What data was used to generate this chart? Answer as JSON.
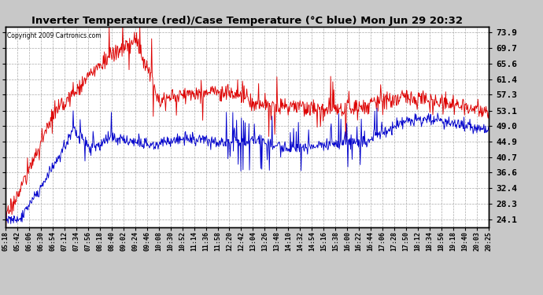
{
  "title": "Inverter Temperature (red)/Case Temperature (°C blue) Mon Jun 29 20:32",
  "copyright": "Copyright 2009 Cartronics.com",
  "yticks": [
    24.1,
    28.3,
    32.4,
    36.6,
    40.7,
    44.9,
    49.0,
    53.1,
    57.3,
    61.4,
    65.6,
    69.7,
    73.9
  ],
  "ymin": 22.0,
  "ymax": 75.5,
  "bg_color": "#c8c8c8",
  "plot_bg": "#ffffff",
  "grid_color": "#aaaaaa",
  "red_color": "#dd0000",
  "blue_color": "#0000cc",
  "xtick_labels": [
    "05:18",
    "05:42",
    "06:06",
    "06:30",
    "06:54",
    "07:12",
    "07:34",
    "07:56",
    "08:18",
    "08:40",
    "09:02",
    "09:24",
    "09:46",
    "10:08",
    "10:30",
    "10:52",
    "11:14",
    "11:36",
    "11:58",
    "12:20",
    "12:42",
    "13:04",
    "13:26",
    "13:48",
    "14:10",
    "14:32",
    "14:54",
    "15:16",
    "15:38",
    "16:00",
    "16:22",
    "16:44",
    "17:06",
    "17:28",
    "17:50",
    "18:12",
    "18:34",
    "18:56",
    "19:18",
    "19:40",
    "20:03",
    "20:25"
  ],
  "n_points": 900
}
